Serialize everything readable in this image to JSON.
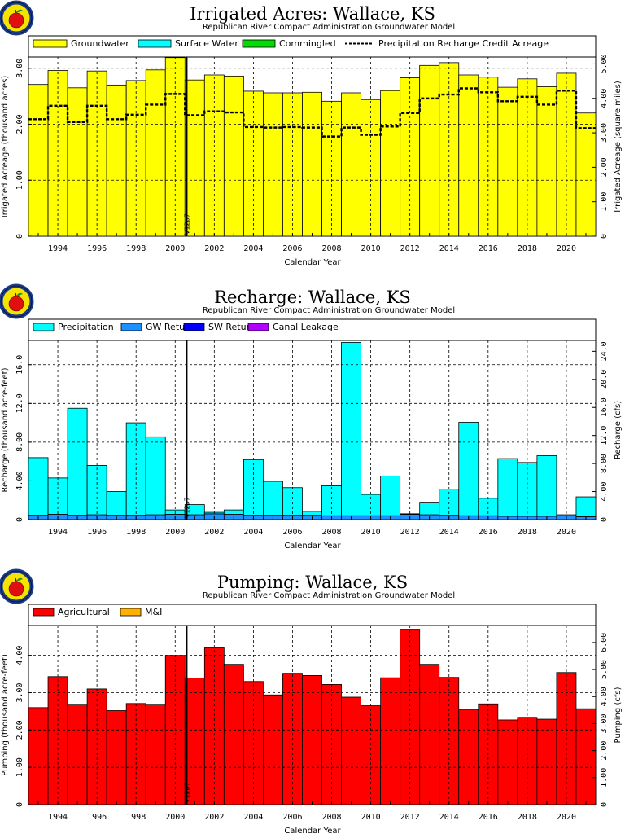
{
  "logo": {
    "name": "apple-logo-icon",
    "colors": {
      "ring": "#1a3a8c",
      "apple": "#e01010",
      "leaf": "#2a8a2a",
      "fill": "#f5e400"
    }
  },
  "colors": {
    "groundwater": "#ffff00",
    "surface_water": "#00ffff",
    "commingled": "#00dd00",
    "precipitation": "#00ffff",
    "gw_returns": "#1e90ff",
    "sw_returns": "#0000ff",
    "canal_leakage": "#b000ff",
    "agricultural": "#ff0000",
    "mi": "#ffb000"
  },
  "marker_label": "V12p7",
  "chart_data": [
    {
      "type": "bar",
      "title": "Irrigated Acres: Wallace, KS",
      "subtitle": "Republican River Compact Administration Groundwater Model",
      "xlabel": "Calendar Year",
      "ylabel": "Irrigated Acreage (thousand acres)",
      "y2label": "Irrigated Acreage (square miles)",
      "x": [
        1993,
        1994,
        1995,
        1996,
        1997,
        1998,
        1999,
        2000,
        2001,
        2002,
        2003,
        2004,
        2005,
        2006,
        2007,
        2008,
        2009,
        2010,
        2011,
        2012,
        2013,
        2014,
        2015,
        2016,
        2017,
        2018,
        2019,
        2020,
        2021
      ],
      "xticks": [
        "1994",
        "1996",
        "1998",
        "2000",
        "2002",
        "2004",
        "2006",
        "2008",
        "2010",
        "2012",
        "2014",
        "2016",
        "2018",
        "2020"
      ],
      "xlim": [
        1992.5,
        2021.5
      ],
      "ylim": [
        0,
        3.2
      ],
      "yticks": [
        0,
        1,
        2,
        3
      ],
      "ytick_labels": [
        "0",
        "1.00",
        "2.00",
        "3.00"
      ],
      "y2lim": [
        0,
        5.2
      ],
      "y2ticks": [
        0,
        1,
        2,
        3,
        4,
        5
      ],
      "y2tick_labels": [
        "0",
        "1.00",
        "2.00",
        "3.00",
        "4.00",
        "5.00"
      ],
      "grid": true,
      "legend_position": "top",
      "legend": [
        "Groundwater",
        "Surface Water",
        "Commingled",
        "Precipitation Recharge Credit Acreage"
      ],
      "series": [
        {
          "name": "Groundwater",
          "color_key": "groundwater",
          "values": [
            2.71,
            2.96,
            2.65,
            2.95,
            2.7,
            2.78,
            2.97,
            3.19,
            2.79,
            2.88,
            2.86,
            2.59,
            2.56,
            2.56,
            2.57,
            2.41,
            2.56,
            2.44,
            2.6,
            2.83,
            3.05,
            3.1,
            2.88,
            2.84,
            2.66,
            2.81,
            2.67,
            2.91,
            2.2
          ]
        },
        {
          "name": "Surface Water",
          "color_key": "surface_water",
          "values": [
            0,
            0,
            0,
            0,
            0,
            0,
            0,
            0,
            0,
            0,
            0,
            0,
            0,
            0,
            0,
            0,
            0,
            0,
            0,
            0,
            0,
            0,
            0,
            0,
            0,
            0,
            0,
            0,
            0
          ]
        },
        {
          "name": "Commingled",
          "color_key": "commingled",
          "values": [
            0,
            0,
            0,
            0,
            0,
            0,
            0,
            0,
            0,
            0,
            0,
            0,
            0,
            0,
            0,
            0,
            0,
            0,
            0,
            0,
            0,
            0,
            0,
            0,
            0,
            0,
            0,
            0,
            0
          ]
        }
      ],
      "lines": [
        {
          "name": "Precipitation Recharge Credit Acreage",
          "values": [
            2.09,
            2.33,
            2.04,
            2.33,
            2.09,
            2.17,
            2.35,
            2.54,
            2.16,
            2.23,
            2.21,
            1.95,
            1.94,
            1.95,
            1.94,
            1.78,
            1.94,
            1.81,
            1.96,
            2.2,
            2.46,
            2.53,
            2.64,
            2.57,
            2.41,
            2.49,
            2.35,
            2.6,
            1.93
          ]
        }
      ],
      "marker_year": 2000.6
    },
    {
      "type": "bar",
      "title": "Recharge: Wallace, KS",
      "subtitle": "Republican River Compact Administration Groundwater Model",
      "xlabel": "Calendar Year",
      "ylabel": "Recharge (thousand acre-feet)",
      "y2label": "Recharge (cfs)",
      "x": [
        1993,
        1994,
        1995,
        1996,
        1997,
        1998,
        1999,
        2000,
        2001,
        2002,
        2003,
        2004,
        2005,
        2006,
        2007,
        2008,
        2009,
        2010,
        2011,
        2012,
        2013,
        2014,
        2015,
        2016,
        2017,
        2018,
        2019,
        2020,
        2021
      ],
      "xticks": [
        "1994",
        "1996",
        "1998",
        "2000",
        "2002",
        "2004",
        "2006",
        "2008",
        "2010",
        "2012",
        "2014",
        "2016",
        "2018",
        "2020"
      ],
      "xlim": [
        1992.5,
        2021.5
      ],
      "ylim": [
        0,
        18.5
      ],
      "yticks": [
        0,
        4,
        8,
        12,
        16
      ],
      "ytick_labels": [
        "0",
        "4.00",
        "8.00",
        "12.0",
        "16.0"
      ],
      "y2lim": [
        0,
        25.55
      ],
      "y2ticks": [
        0,
        4,
        8,
        12,
        16,
        20,
        24
      ],
      "y2tick_labels": [
        "0",
        "4.00",
        "8.00",
        "12.0",
        "16.0",
        "20.0",
        "24.0"
      ],
      "grid": true,
      "legend_position": "top",
      "legend": [
        "Precipitation",
        "GW Returns",
        "SW Returns",
        "Canal Leakage"
      ],
      "series": [
        {
          "name": "GW Returns",
          "color_key": "gw_returns",
          "values": [
            0.45,
            0.55,
            0.45,
            0.5,
            0.45,
            0.45,
            0.5,
            0.55,
            0.5,
            0.6,
            0.55,
            0.45,
            0.45,
            0.45,
            0.45,
            0.4,
            0.4,
            0.4,
            0.4,
            0.55,
            0.5,
            0.45,
            0.4,
            0.4,
            0.35,
            0.35,
            0.35,
            0.4,
            0.3
          ]
        },
        {
          "name": "SW Returns",
          "color_key": "sw_returns",
          "values": [
            0,
            0,
            0,
            0,
            0,
            0,
            0,
            0,
            0,
            0,
            0,
            0,
            0,
            0,
            0,
            0,
            0,
            0,
            0,
            0,
            0,
            0,
            0,
            0,
            0,
            0,
            0,
            0,
            0
          ]
        },
        {
          "name": "Canal Leakage",
          "color_key": "canal_leakage",
          "values": [
            0,
            0,
            0,
            0,
            0,
            0,
            0,
            0,
            0,
            0,
            0,
            0,
            0,
            0,
            0,
            0,
            0,
            0,
            0,
            0,
            0,
            0,
            0,
            0,
            0,
            0,
            0,
            0,
            0
          ]
        },
        {
          "name": "Precipitation",
          "color_key": "precipitation",
          "values": [
            5.95,
            3.75,
            11.05,
            5.1,
            2.45,
            9.55,
            8.05,
            0.45,
            1.05,
            0.15,
            0.45,
            5.75,
            3.5,
            2.85,
            0.4,
            3.1,
            17.9,
            2.2,
            4.1,
            0.05,
            1.3,
            2.7,
            9.65,
            1.8,
            5.95,
            5.55,
            6.25,
            0.1,
            2.05
          ]
        }
      ],
      "marker_year": 2000.6
    },
    {
      "type": "bar",
      "title": "Pumping: Wallace, KS",
      "subtitle": "Republican River Compact Administration Groundwater Model",
      "xlabel": "Calendar Year",
      "ylabel": "Pumping (thousand acre-feet)",
      "y2label": "Pumping (cfs)",
      "x": [
        1993,
        1994,
        1995,
        1996,
        1997,
        1998,
        1999,
        2000,
        2001,
        2002,
        2003,
        2004,
        2005,
        2006,
        2007,
        2008,
        2009,
        2010,
        2011,
        2012,
        2013,
        2014,
        2015,
        2016,
        2017,
        2018,
        2019,
        2020,
        2021
      ],
      "xticks": [
        "1994",
        "1996",
        "1998",
        "2000",
        "2002",
        "2004",
        "2006",
        "2008",
        "2010",
        "2012",
        "2014",
        "2016",
        "2018",
        "2020"
      ],
      "xlim": [
        1992.5,
        2021.5
      ],
      "ylim": [
        0,
        4.8
      ],
      "yticks": [
        0,
        1,
        2,
        3,
        4
      ],
      "ytick_labels": [
        "0",
        "1.00",
        "2.00",
        "3.00",
        "4.00"
      ],
      "y2lim": [
        0,
        6.63
      ],
      "y2ticks": [
        0,
        1,
        2,
        3,
        4,
        5,
        6
      ],
      "y2tick_labels": [
        "0",
        "1.00",
        "2.00",
        "3.00",
        "4.00",
        "5.00",
        "6.00"
      ],
      "grid": true,
      "legend_position": "top",
      "legend": [
        "Agricultural",
        "M&I"
      ],
      "series": [
        {
          "name": "Agricultural",
          "color_key": "agricultural",
          "values": [
            2.6,
            3.43,
            2.69,
            3.1,
            2.52,
            2.71,
            2.69,
            4.0,
            3.39,
            4.2,
            3.76,
            3.3,
            2.94,
            3.52,
            3.46,
            3.22,
            2.88,
            2.66,
            3.4,
            4.7,
            3.76,
            3.41,
            2.54,
            2.7,
            2.27,
            2.34,
            2.29,
            3.54,
            2.57
          ]
        },
        {
          "name": "M&I",
          "color_key": "mi",
          "values": [
            0,
            0,
            0,
            0,
            0,
            0,
            0,
            0,
            0,
            0,
            0,
            0,
            0,
            0,
            0,
            0,
            0,
            0,
            0,
            0,
            0,
            0,
            0,
            0,
            0,
            0,
            0,
            0,
            0
          ]
        }
      ],
      "marker_year": 2000.6
    }
  ]
}
